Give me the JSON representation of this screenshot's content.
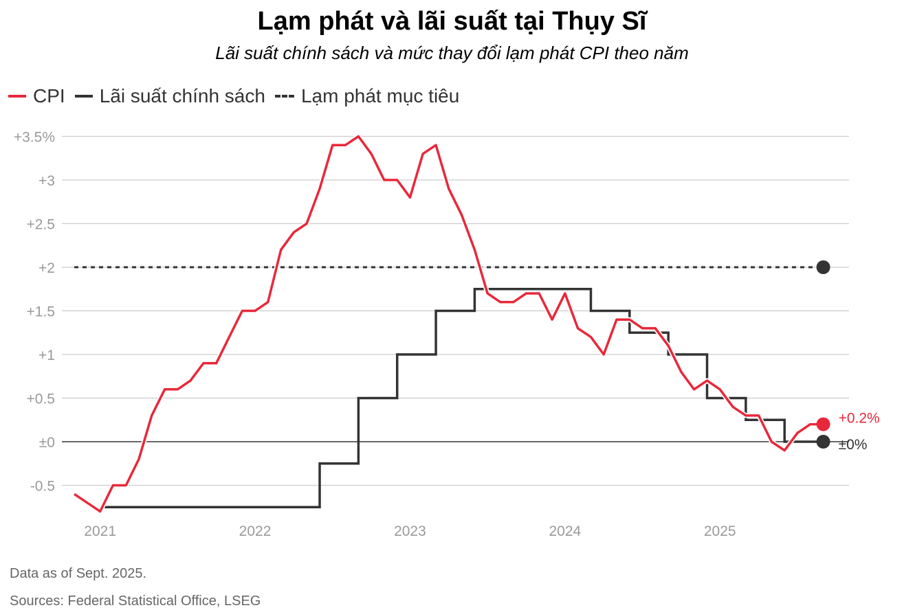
{
  "title": "Lạm phát và lãi suất tại Thụy Sĩ",
  "subtitle": "Lãi suất chính sách và mức thay đổi lạm phát CPI theo năm",
  "legend": {
    "cpi": "CPI",
    "policy_rate": "Lãi suất chính sách",
    "target": "Lạm phát mục tiêu"
  },
  "colors": {
    "cpi": "#e8283a",
    "rate": "#333333",
    "grid": "#cccccc",
    "axis_text": "#999999"
  },
  "chart_data": {
    "type": "line",
    "title": "Lạm phát và lãi suất tại Thụy Sĩ",
    "subtitle": "Lãi suất chính sách và mức thay đổi lạm phát CPI theo năm",
    "ylim": [
      -0.8,
      3.5
    ],
    "y_ticks": [
      3.5,
      3,
      2.5,
      2,
      1.5,
      1,
      0.5,
      0,
      -0.5
    ],
    "y_tick_labels": [
      "+3.5%",
      "+3",
      "+2.5",
      "+2",
      "+1.5",
      "+1",
      "+0.5",
      "±0",
      "-0.5"
    ],
    "x_ticks": [
      2021,
      2022,
      2023,
      2024,
      2025
    ],
    "x_tick_labels": [
      "2021",
      "2022",
      "2023",
      "2024",
      "2025"
    ],
    "xlim": [
      2020.833,
      2025.833
    ],
    "series": [
      {
        "name": "CPI",
        "style": "line",
        "x": [
          2020.833,
          2020.917,
          2021.0,
          2021.083,
          2021.167,
          2021.25,
          2021.333,
          2021.417,
          2021.5,
          2021.583,
          2021.667,
          2021.75,
          2021.833,
          2021.917,
          2022.0,
          2022.083,
          2022.167,
          2022.25,
          2022.333,
          2022.417,
          2022.5,
          2022.583,
          2022.667,
          2022.75,
          2022.833,
          2022.917,
          2023.0,
          2023.083,
          2023.167,
          2023.25,
          2023.333,
          2023.417,
          2023.5,
          2023.583,
          2023.667,
          2023.75,
          2023.833,
          2023.917,
          2024.0,
          2024.083,
          2024.167,
          2024.25,
          2024.333,
          2024.417,
          2024.5,
          2024.583,
          2024.667,
          2024.75,
          2024.833,
          2024.917,
          2025.0,
          2025.083,
          2025.167,
          2025.25,
          2025.333,
          2025.417,
          2025.5,
          2025.583,
          2025.667
        ],
        "values": [
          -0.6,
          -0.7,
          -0.8,
          -0.5,
          -0.5,
          -0.2,
          0.3,
          0.6,
          0.6,
          0.7,
          0.9,
          0.9,
          1.2,
          1.5,
          1.5,
          1.6,
          2.2,
          2.4,
          2.5,
          2.9,
          3.4,
          3.4,
          3.5,
          3.3,
          3.0,
          3.0,
          2.8,
          3.3,
          3.4,
          2.9,
          2.6,
          2.2,
          1.7,
          1.6,
          1.6,
          1.7,
          1.7,
          1.4,
          1.7,
          1.3,
          1.2,
          1.0,
          1.4,
          1.4,
          1.3,
          1.3,
          1.1,
          0.8,
          0.6,
          0.7,
          0.6,
          0.4,
          0.3,
          0.3,
          0.0,
          -0.1,
          0.1,
          0.2,
          0.2
        ]
      },
      {
        "name": "Lãi suất chính sách",
        "style": "step",
        "x": [
          2021.0,
          2022.417,
          2022.667,
          2022.917,
          2023.167,
          2023.417,
          2024.167,
          2024.417,
          2024.667,
          2024.917,
          2025.167,
          2025.417,
          2025.667
        ],
        "values": [
          -0.75,
          -0.25,
          0.5,
          1.0,
          1.5,
          1.75,
          1.5,
          1.25,
          1.0,
          0.5,
          0.25,
          0.0,
          0.0
        ]
      },
      {
        "name": "Lạm phát mục tiêu",
        "style": "dashed",
        "x": [
          2020.833,
          2025.667
        ],
        "values": [
          2,
          2
        ]
      }
    ],
    "end_labels": {
      "cpi": "+0.2%",
      "rate": "±0%"
    }
  },
  "notes": {
    "data_as_of": "Data as of Sept. 2025.",
    "sources": "Sources: Federal Statistical Office, LSEG"
  }
}
